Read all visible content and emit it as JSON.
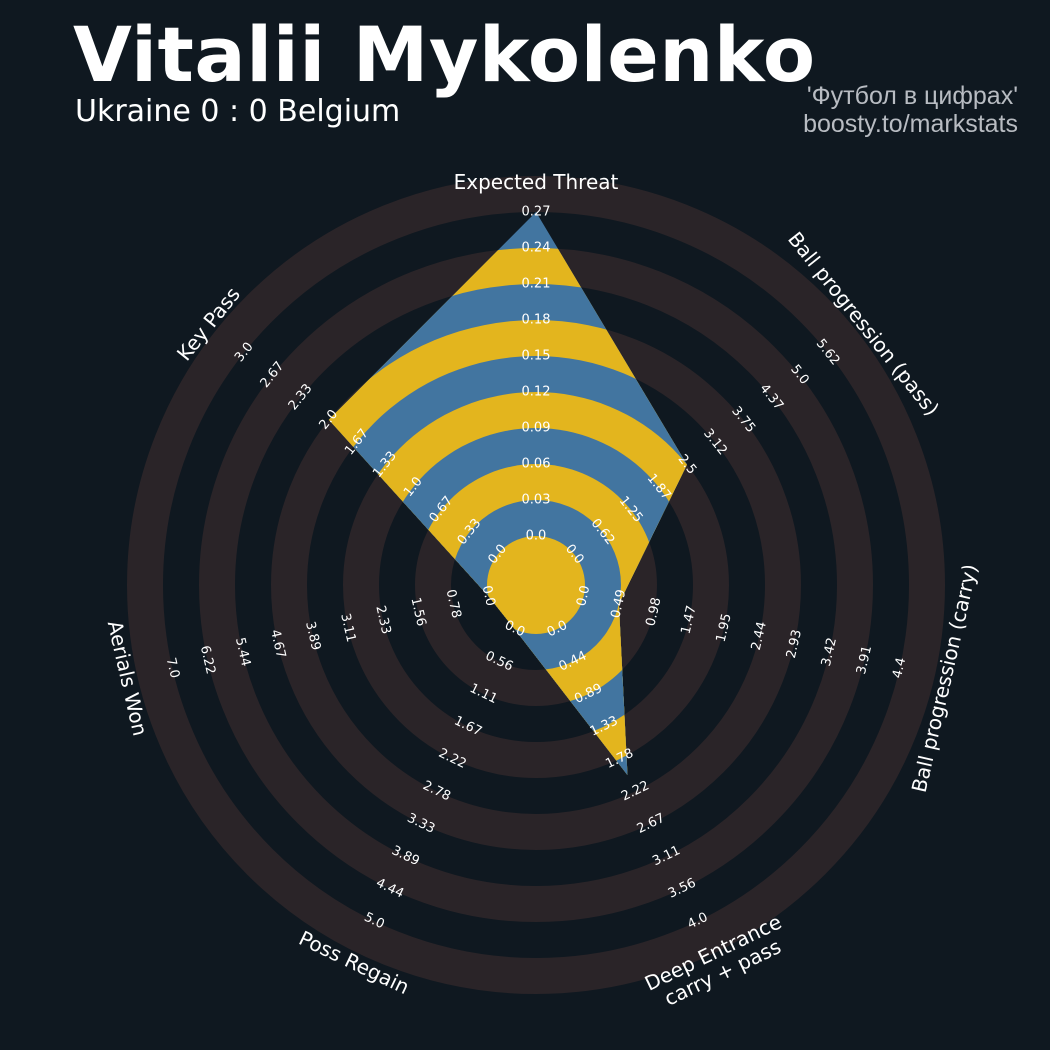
{
  "header": {
    "player_name": "Vitalii Mykolenko",
    "match": "Ukraine 0 : 0 Belgium",
    "credit_line1": "'Футбол в цифрах'",
    "credit_line2": "boosty.to/markstats"
  },
  "colors": {
    "background": "#0f1820",
    "ring_band": "#2a2428",
    "polygon_blue": "#4275a0",
    "polygon_yellow": "#e3b51e",
    "text": "#ffffff",
    "credit_text": "#b8bcc2"
  },
  "chart_data": {
    "type": "radar",
    "title": "Vitalii Mykolenko",
    "subtitle": "Ukraine 0 : 0 Belgium",
    "axes": [
      {
        "label": "Expected Threat",
        "ticks": [
          "0.0",
          "0.03",
          "0.06",
          "0.09",
          "0.12",
          "0.15",
          "0.18",
          "0.21",
          "0.24",
          "0.27"
        ],
        "min": 0,
        "max": 0.27,
        "value": 0.27
      },
      {
        "label": "Ball progression (pass)",
        "ticks": [
          "0.0",
          "0.62",
          "1.25",
          "1.87",
          "2.5",
          "3.12",
          "3.75",
          "4.37",
          "5.0",
          "5.62"
        ],
        "min": 0,
        "max": 5.62,
        "value": 2.5
      },
      {
        "label": "Ball progression (carry)",
        "ticks": [
          "0.0",
          "0.49",
          "0.98",
          "1.47",
          "1.95",
          "2.44",
          "2.93",
          "3.42",
          "3.91",
          "4.4"
        ],
        "min": 0,
        "max": 4.4,
        "value": 0.49
      },
      {
        "label": "Deep Entrance\ncarry + pass",
        "ticks": [
          "0.0",
          "0.44",
          "0.89",
          "1.33",
          "1.78",
          "2.22",
          "2.67",
          "3.11",
          "3.56",
          "4.0"
        ],
        "min": 0,
        "max": 4.0,
        "value": 2.0
      },
      {
        "label": "Poss Regain",
        "ticks": [
          "0.0",
          "0.56",
          "1.11",
          "1.67",
          "2.22",
          "2.78",
          "3.33",
          "3.89",
          "4.44",
          "5.0"
        ],
        "min": 0,
        "max": 5.0,
        "value": 0.0
      },
      {
        "label": "Aerials Won",
        "ticks": [
          "0.0",
          "0.78",
          "1.56",
          "2.33",
          "3.11",
          "3.89",
          "4.67",
          "5.44",
          "6.22",
          "7.0"
        ],
        "min": 0,
        "max": 7.0,
        "value": 0.0
      },
      {
        "label": "Key Pass",
        "ticks": [
          "0.0",
          "0.33",
          "0.67",
          "1.0",
          "1.33",
          "1.67",
          "2.0",
          "2.33",
          "2.67",
          "3.0"
        ],
        "min": 0,
        "max": 3.0,
        "value": 2.0
      }
    ]
  }
}
